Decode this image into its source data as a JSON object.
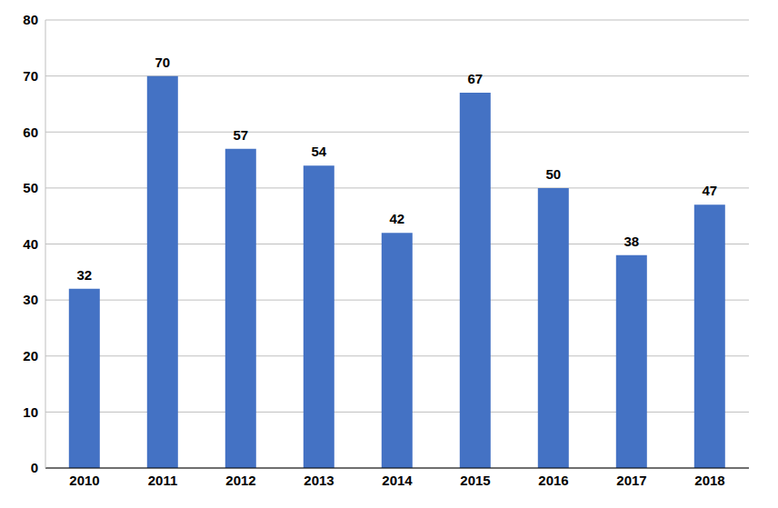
{
  "chart_data": {
    "type": "bar",
    "categories": [
      "2010",
      "2011",
      "2012",
      "2013",
      "2014",
      "2015",
      "2016",
      "2017",
      "2018"
    ],
    "values": [
      32,
      70,
      57,
      54,
      42,
      67,
      50,
      38,
      47
    ],
    "color": "#4472c4",
    "ylim": [
      0,
      80
    ],
    "yticks": [
      0,
      10,
      20,
      30,
      40,
      50,
      60,
      70,
      80
    ],
    "grid": true,
    "data_labels": true
  }
}
